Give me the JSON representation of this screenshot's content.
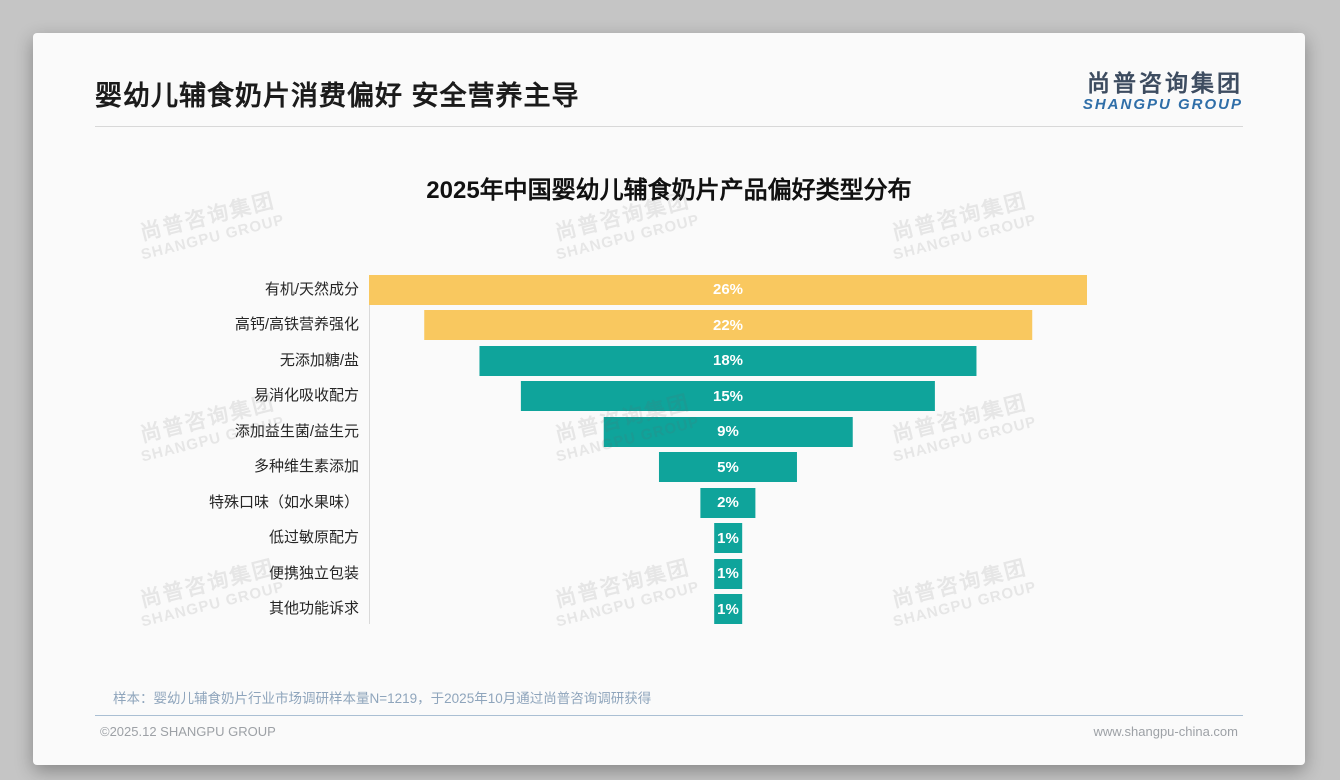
{
  "page": {
    "title": "婴幼儿辅食奶片消费偏好 安全营养主导",
    "logo": {
      "cn": "尚普咨询集团",
      "en": "SHANGPU GROUP"
    },
    "watermark": {
      "cn": "尚普咨询集团",
      "en": "SHANGPU GROUP"
    },
    "sample_note": "样本：婴幼儿辅食奶片行业市场调研样本量N=1219，于2025年10月通过尚普咨询调研获得",
    "footer": {
      "copyright": "©2025.12 SHANGPU GROUP",
      "website": "www.shangpu-china.com"
    }
  },
  "chart_data": {
    "type": "bar",
    "variant": "horizontal-centered-funnel",
    "title": "2025年中国婴幼儿辅食奶片产品偏好类型分布",
    "categories": [
      "有机/天然成分",
      "高钙/高铁营养强化",
      "无添加糖/盐",
      "易消化吸收配方",
      "添加益生菌/益生元",
      "多种维生素添加",
      "特殊口味（如水果味）",
      "低过敏原配方",
      "便携独立包装",
      "其他功能诉求"
    ],
    "values": [
      26,
      22,
      18,
      15,
      9,
      5,
      2,
      1,
      1,
      1
    ],
    "value_labels": [
      "26%",
      "22%",
      "18%",
      "15%",
      "9%",
      "5%",
      "2%",
      "1%",
      "1%",
      "1%"
    ],
    "xlabel": "",
    "ylabel": "",
    "xlim": [
      0,
      26
    ],
    "grid": false,
    "legend": false,
    "bar_value_color": "#ffffff",
    "colors": {
      "highlight": "#f9c85f",
      "default": "#0fa49b"
    },
    "highlight_count": 2
  }
}
